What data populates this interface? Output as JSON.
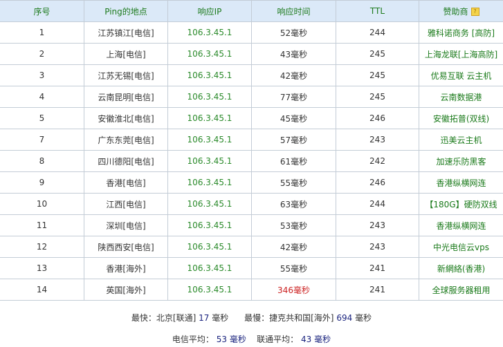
{
  "headers": [
    "序号",
    "Ping的地点",
    "响应IP",
    "响应时间",
    "TTL",
    "赞助商"
  ],
  "colors": {
    "header_bg": "#dbe9f8",
    "header_text": "#1c7a1c",
    "ip": "#2a8a2a",
    "slow": "#cc2222",
    "summary_number": "#1a237e"
  },
  "rows": [
    [
      "1",
      "江苏镇江[电信]",
      "106.3.45.1",
      "52毫秒",
      "244",
      "雅科诺商务 [高防]"
    ],
    [
      "2",
      "上海[电信]",
      "106.3.45.1",
      "43毫秒",
      "245",
      "上海龙联[上海高防]"
    ],
    [
      "3",
      "江苏无锡[电信]",
      "106.3.45.1",
      "42毫秒",
      "245",
      "优易互联 云主机"
    ],
    [
      "4",
      "云南昆明[电信]",
      "106.3.45.1",
      "77毫秒",
      "245",
      "云南数据港"
    ],
    [
      "5",
      "安徽淮北[电信]",
      "106.3.45.1",
      "45毫秒",
      "246",
      "安徽拓普(双线)"
    ],
    [
      "7",
      "广东东莞[电信]",
      "106.3.45.1",
      "57毫秒",
      "243",
      "迅美云主机"
    ],
    [
      "8",
      "四川德阳[电信]",
      "106.3.45.1",
      "61毫秒",
      "242",
      "加速乐防黑客"
    ],
    [
      "9",
      "香港[电信]",
      "106.3.45.1",
      "55毫秒",
      "246",
      "香港纵横网连"
    ],
    [
      "10",
      "江西[电信]",
      "106.3.45.1",
      "63毫秒",
      "244",
      "【180G】硬防双线"
    ],
    [
      "11",
      "深圳[电信]",
      "106.3.45.1",
      "53毫秒",
      "243",
      "香港纵横网连"
    ],
    [
      "12",
      "陕西西安[电信]",
      "106.3.45.1",
      "42毫秒",
      "243",
      "中光电信云vps"
    ],
    [
      "13",
      "香港[海外]",
      "106.3.45.1",
      "55毫秒",
      "241",
      "新網絡(香港)"
    ],
    [
      "14",
      "英国[海外]",
      "106.3.45.1",
      "346毫秒",
      "241",
      "全球服务器租用"
    ]
  ],
  "slow_rows": [
    12
  ],
  "summary": {
    "fastest_label": "最快：北京[联通]",
    "fastest_value": "17",
    "unit": "毫秒",
    "slowest_label": "最慢：捷克共和国[海外]",
    "slowest_value": "694",
    "telecom_label": "电信平均：",
    "telecom_value": "53",
    "unicom_label": "联通平均：",
    "unicom_value": "43"
  }
}
